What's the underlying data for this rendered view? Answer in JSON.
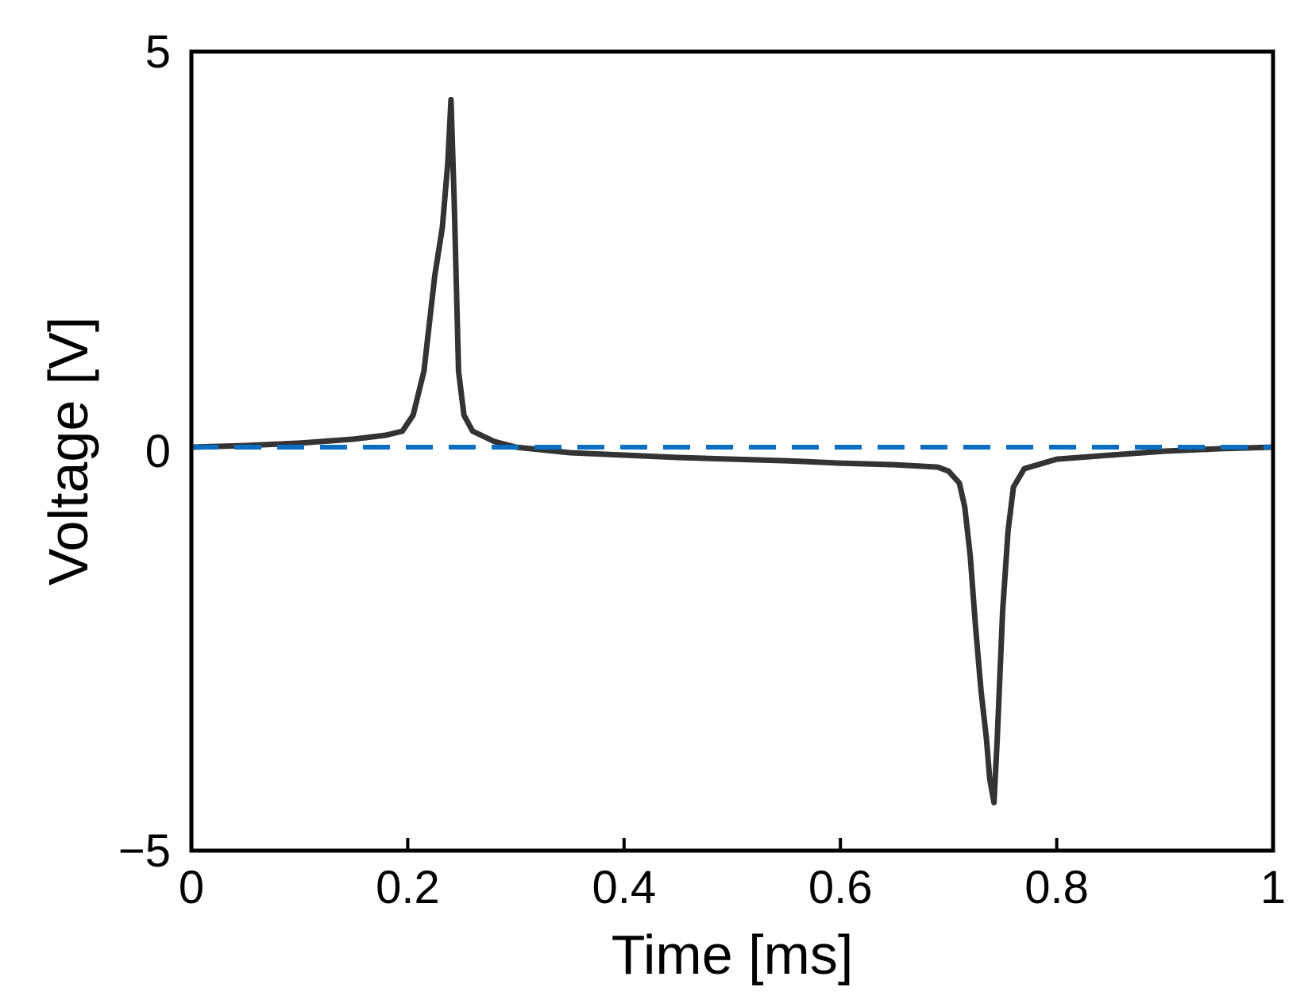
{
  "chart_data": {
    "type": "line",
    "title": "",
    "xlabel": "Time [ms]",
    "ylabel": "Voltage [V]",
    "xlim": [
      0,
      1
    ],
    "ylim": [
      -5,
      5
    ],
    "xticks": [
      0,
      0.2,
      0.4,
      0.6,
      0.8,
      1
    ],
    "xtick_labels": [
      "0",
      "0.2",
      "0.4",
      "0.6",
      "0.8",
      "1"
    ],
    "yticks": [
      -5,
      0,
      5
    ],
    "ytick_labels": [
      "−5",
      "0",
      "5"
    ],
    "grid": false,
    "legend": "none",
    "series": [
      {
        "style": "solid",
        "color": "#333333",
        "x": [
          0,
          0.05,
          0.1,
          0.15,
          0.18,
          0.195,
          0.205,
          0.215,
          0.225,
          0.232,
          0.237,
          0.24,
          0.243,
          0.247,
          0.252,
          0.26,
          0.28,
          0.3,
          0.35,
          0.4,
          0.45,
          0.5,
          0.55,
          0.6,
          0.65,
          0.69,
          0.7,
          0.71,
          0.715,
          0.72,
          0.725,
          0.73,
          0.735,
          0.738,
          0.742,
          0.745,
          0.75,
          0.755,
          0.76,
          0.77,
          0.8,
          0.85,
          0.9,
          0.95,
          1.0
        ],
        "y": [
          0.05,
          0.07,
          0.1,
          0.15,
          0.2,
          0.25,
          0.45,
          1.0,
          2.2,
          2.8,
          3.6,
          4.4,
          3.1,
          1.0,
          0.45,
          0.25,
          0.12,
          0.05,
          -0.02,
          -0.05,
          -0.08,
          -0.1,
          -0.12,
          -0.15,
          -0.17,
          -0.2,
          -0.25,
          -0.4,
          -0.7,
          -1.3,
          -2.2,
          -3.0,
          -3.6,
          -4.1,
          -4.4,
          -3.6,
          -2.0,
          -1.0,
          -0.45,
          -0.22,
          -0.1,
          -0.05,
          0.0,
          0.03,
          0.05
        ]
      },
      {
        "style": "dashed",
        "color": "#0a6fc2",
        "x": [
          0,
          1
        ],
        "y": [
          0.05,
          0.05
        ]
      }
    ]
  }
}
